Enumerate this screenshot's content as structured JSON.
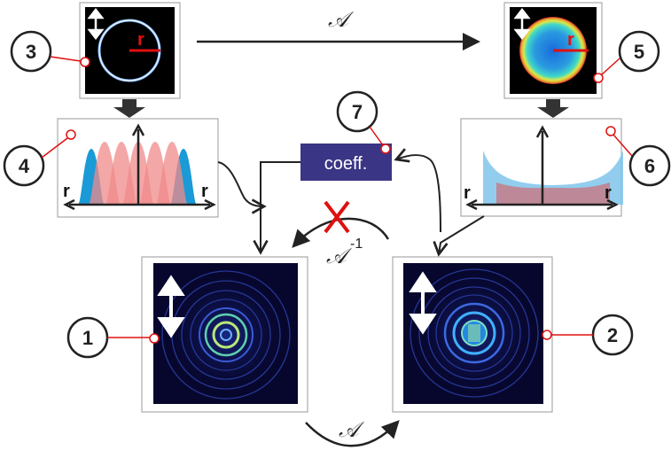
{
  "badges": {
    "b1": "1",
    "b2": "2",
    "b3": "3",
    "b4": "4",
    "b5": "5",
    "b6": "6",
    "b7": "7"
  },
  "panel4": {
    "left_label": "r",
    "right_label": "r"
  },
  "panel6": {
    "left_label": "r",
    "right_label": "r"
  },
  "panel3": {
    "radius_label": "r"
  },
  "panel5": {
    "radius_label": "r"
  },
  "coeff_box": {
    "label": "coeff."
  },
  "operators": {
    "top": "𝒜",
    "bottom": "𝒜",
    "inverse": "𝒜",
    "inverse_exponent": "-1"
  },
  "colors": {
    "coeff_box": "#3b3585",
    "radius_line": "#e01010",
    "badge_marker": "#e01010",
    "blue_fill": "#1a9ad6",
    "pink_fill": "#f08a8a",
    "cross": "#e01010",
    "dark_panel": "#07072e"
  }
}
